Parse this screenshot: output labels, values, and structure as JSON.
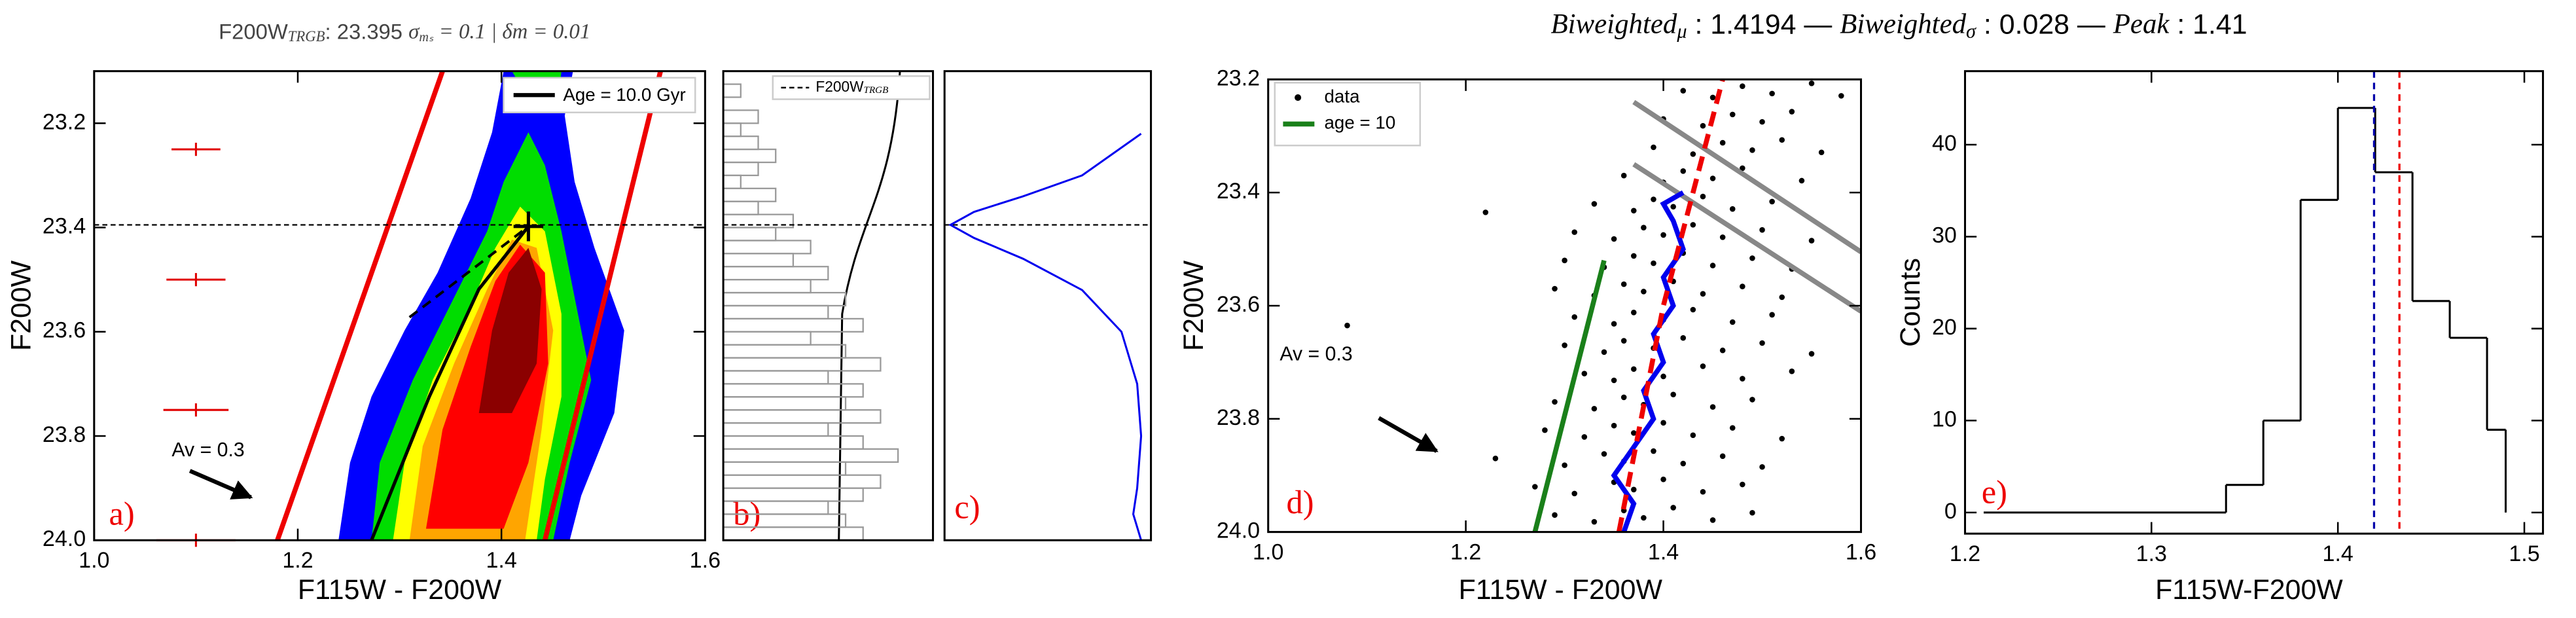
{
  "chart_data": [
    {
      "type": "density",
      "title": [
        "F200W",
        "TRGB",
        ": 23.395 ",
        "σ",
        "mₛ",
        " = 0.1 | δm = 0.01"
      ],
      "xlabel": "F115W - F200W",
      "ylabel": "F200W",
      "xlim": [
        1.0,
        1.6
      ],
      "ylim": [
        24.0,
        23.1
      ],
      "xticks": [
        {
          "value": 1.0,
          "label": "1.0"
        },
        1.2,
        1.4,
        1.6
      ],
      "yticks": [
        23.2,
        23.4,
        23.6,
        23.8,
        {
          "value": 24.0,
          "label": "24.0"
        }
      ],
      "trgb": 23.395,
      "legend": "Age = 10.0 Gyr",
      "annotation": "Av = 0.3",
      "panel_label": "a)",
      "error_bars": {
        "x": 1.1,
        "y": [
          23.25,
          23.5,
          23.75,
          24.0
        ],
        "xerr": [
          0.024,
          0.029,
          0.032,
          0.039
        ],
        "color": "#e00000"
      }
    },
    {
      "type": "histogram",
      "orientation": "horizontal",
      "xlim": [
        0,
        12
      ],
      "ylim": [
        24.0,
        23.1
      ],
      "bins": [
        23.1,
        23.125,
        23.15,
        23.175,
        23.2,
        23.225,
        23.25,
        23.275,
        23.3,
        23.325,
        23.35,
        23.375,
        23.4,
        23.425,
        23.45,
        23.475,
        23.5,
        23.525,
        23.55,
        23.575,
        23.6,
        23.625,
        23.65,
        23.675,
        23.7,
        23.725,
        23.75,
        23.775,
        23.8,
        23.825,
        23.85,
        23.875,
        23.9,
        23.925,
        23.95,
        23.975,
        24.0
      ],
      "counts": [
        0,
        1,
        0,
        2,
        1,
        2,
        3,
        2,
        1,
        3,
        2,
        4,
        3,
        5,
        4,
        6,
        5,
        7,
        6,
        8,
        5,
        7,
        9,
        6,
        8,
        7,
        9,
        6,
        8,
        10,
        7,
        9,
        8,
        6,
        7,
        8
      ],
      "color": "#999999",
      "trgb": 23.395,
      "legend": [
        "F200W",
        "TRGB"
      ],
      "panel_label": "b)"
    },
    {
      "type": "line",
      "xlim": [
        0,
        1.05
      ],
      "ylim": [
        24.0,
        23.1
      ],
      "color": "#0000ee",
      "values": [
        1.0,
        0.7,
        0.4,
        0.15,
        0.03,
        0.15,
        0.4,
        0.7,
        0.9,
        0.98,
        1.0,
        0.98,
        0.96,
        1.0
      ],
      "y": [
        23.22,
        23.3,
        23.34,
        23.37,
        23.395,
        23.42,
        23.46,
        23.52,
        23.6,
        23.7,
        23.8,
        23.9,
        23.95,
        24.0
      ],
      "trgb": 23.395,
      "panel_label": "c)"
    },
    {
      "type": "scatter",
      "xlabel": "F115W - F200W",
      "ylabel": "F200W",
      "xlim": [
        1.0,
        1.6
      ],
      "ylim": [
        24.0,
        23.2
      ],
      "xticks": [
        {
          "value": 1.0,
          "label": "1.0"
        },
        1.2,
        1.4,
        1.6
      ],
      "yticks": [
        23.2,
        23.4,
        23.6,
        23.8,
        {
          "value": 24.0,
          "label": "24.0"
        }
      ],
      "annotation": "Av = 0.3",
      "panel_label": "d)",
      "series": [
        {
          "name": "data",
          "type": "scatter",
          "color": "#000000",
          "x": [
            1.42,
            1.45,
            1.48,
            1.51,
            1.55,
            1.58,
            1.4,
            1.44,
            1.47,
            1.5,
            1.53,
            1.39,
            1.43,
            1.46,
            1.49,
            1.52,
            1.56,
            1.36,
            1.4,
            1.42,
            1.45,
            1.48,
            1.54,
            1.33,
            1.37,
            1.39,
            1.41,
            1.44,
            1.47,
            1.51,
            1.22,
            1.31,
            1.35,
            1.38,
            1.4,
            1.43,
            1.46,
            1.5,
            1.55,
            1.3,
            1.34,
            1.37,
            1.39,
            1.42,
            1.45,
            1.49,
            1.53,
            1.29,
            1.33,
            1.36,
            1.38,
            1.41,
            1.44,
            1.48,
            1.52,
            1.31,
            1.35,
            1.37,
            1.4,
            1.43,
            1.47,
            1.51,
            1.08,
            1.3,
            1.34,
            1.36,
            1.39,
            1.42,
            1.46,
            1.5,
            1.55,
            1.32,
            1.35,
            1.37,
            1.4,
            1.44,
            1.48,
            1.53,
            1.29,
            1.33,
            1.36,
            1.38,
            1.41,
            1.45,
            1.49,
            1.28,
            1.32,
            1.35,
            1.37,
            1.4,
            1.43,
            1.47,
            1.52,
            1.23,
            1.3,
            1.34,
            1.36,
            1.39,
            1.42,
            1.46,
            1.5,
            1.27,
            1.31,
            1.35,
            1.37,
            1.4,
            1.44,
            1.48,
            1.29,
            1.33,
            1.36,
            1.38,
            1.41,
            1.45,
            1.49
          ],
          "y": [
            23.22,
            23.232,
            23.212,
            23.225,
            23.207,
            23.229,
            23.27,
            23.282,
            23.262,
            23.275,
            23.257,
            23.32,
            23.332,
            23.312,
            23.325,
            23.307,
            23.329,
            23.37,
            23.382,
            23.362,
            23.375,
            23.357,
            23.379,
            23.42,
            23.432,
            23.412,
            23.425,
            23.407,
            23.429,
            23.416,
            23.435,
            23.47,
            23.482,
            23.462,
            23.475,
            23.457,
            23.479,
            23.466,
            23.485,
            23.52,
            23.532,
            23.512,
            23.525,
            23.507,
            23.529,
            23.516,
            23.535,
            23.57,
            23.582,
            23.562,
            23.575,
            23.557,
            23.579,
            23.566,
            23.585,
            23.62,
            23.632,
            23.612,
            23.625,
            23.607,
            23.629,
            23.616,
            23.635,
            23.67,
            23.682,
            23.662,
            23.675,
            23.657,
            23.679,
            23.666,
            23.685,
            23.72,
            23.732,
            23.712,
            23.725,
            23.707,
            23.729,
            23.716,
            23.77,
            23.782,
            23.762,
            23.775,
            23.757,
            23.779,
            23.766,
            23.82,
            23.832,
            23.812,
            23.825,
            23.807,
            23.829,
            23.816,
            23.835,
            23.87,
            23.882,
            23.862,
            23.875,
            23.857,
            23.879,
            23.866,
            23.885,
            23.92,
            23.932,
            23.912,
            23.925,
            23.907,
            23.929,
            23.916,
            23.97,
            23.982,
            23.962,
            23.975,
            23.957,
            23.979,
            23.966
          ]
        },
        {
          "name": "age = 10",
          "type": "line",
          "color": "#1a801a",
          "x": [
            1.27,
            1.34
          ],
          "y": [
            24.0,
            23.52
          ]
        },
        {
          "type": "line",
          "color": "#888888",
          "x": [
            1.37,
            1.6
          ],
          "y": [
            23.24,
            23.505
          ]
        },
        {
          "type": "line",
          "color": "#888888",
          "x": [
            1.37,
            1.6
          ],
          "y": [
            23.35,
            23.61
          ]
        },
        {
          "type": "line",
          "color": "#0000ee",
          "x": [
            1.36,
            1.37,
            1.35,
            1.37,
            1.39,
            1.38,
            1.4,
            1.39,
            1.41,
            1.4,
            1.42,
            1.41,
            1.4,
            1.42
          ],
          "y": [
            24.0,
            23.95,
            23.9,
            23.85,
            23.8,
            23.75,
            23.7,
            23.65,
            23.6,
            23.55,
            23.5,
            23.45,
            23.42,
            23.4
          ]
        },
        {
          "type": "line",
          "color": "#ee0000",
          "dashed": true,
          "x": [
            1.355,
            1.4,
            1.43,
            1.46
          ],
          "y": [
            24.0,
            23.6,
            23.4,
            23.2
          ]
        }
      ]
    },
    {
      "type": "histogram",
      "title": [
        "Biweighted",
        "μ",
        " : 1.4194 — ",
        "Biweighted",
        "σ",
        " : 0.028 — ",
        "Peak",
        " : 1.41"
      ],
      "xlabel": "F115W-F200W",
      "ylabel": "Counts",
      "xlim": [
        1.2,
        1.51
      ],
      "ylim": [
        -2.3,
        48
      ],
      "xticks": [
        1.2,
        1.3,
        1.4,
        1.5
      ],
      "yticks": [
        0,
        10,
        20,
        30,
        40
      ],
      "bins": [
        1.21,
        1.34,
        1.36,
        1.38,
        1.4,
        1.42,
        1.44,
        1.46,
        1.48,
        1.49
      ],
      "counts": [
        0,
        3,
        10,
        34,
        44,
        37,
        23,
        19,
        9
      ],
      "color": "#000000",
      "vlines": [
        {
          "x": 1.4194,
          "color": "#0000aa"
        },
        {
          "x": 1.433,
          "color": "#ee0000"
        }
      ],
      "panel_label": "e)"
    }
  ]
}
